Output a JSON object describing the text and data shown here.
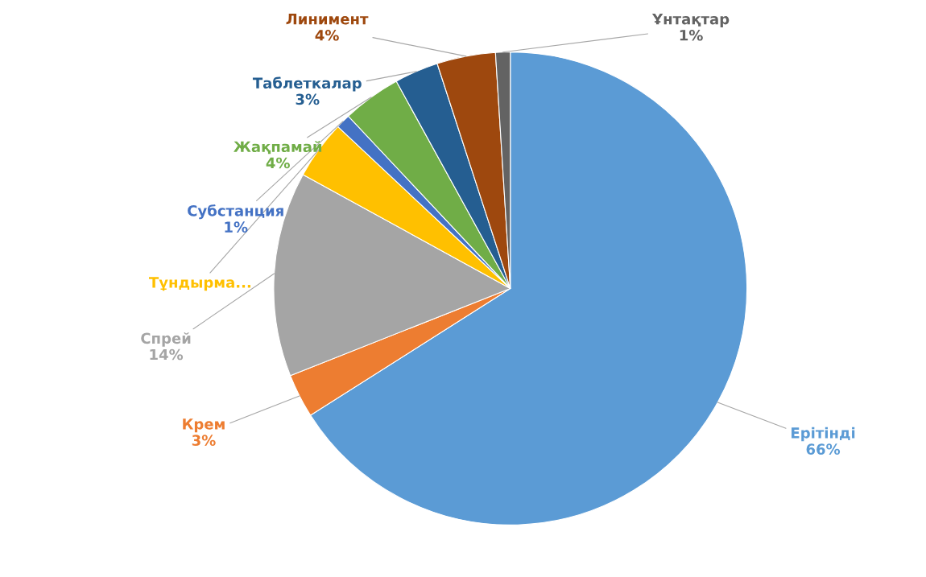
{
  "chart_data": {
    "type": "pie",
    "categories": [
      "Ерітінді",
      "Крем",
      "Спрей",
      "Тұндырма...",
      "Субстанция",
      "Жақпамай",
      "Таблеткалар",
      "Линимент",
      "Ұнтақтар"
    ],
    "values": [
      66,
      3,
      14,
      4,
      1,
      4,
      3,
      4,
      1
    ],
    "value_labels": [
      "66%",
      "3%",
      "14%",
      null,
      "1%",
      "4%",
      "3%",
      "4%",
      "1%"
    ],
    "colors": [
      "#5b9bd5",
      "#ed7d31",
      "#a5a5a5",
      "#ffc000",
      "#4472c4",
      "#70ad47",
      "#255e91",
      "#9e480e",
      "#636363"
    ]
  }
}
